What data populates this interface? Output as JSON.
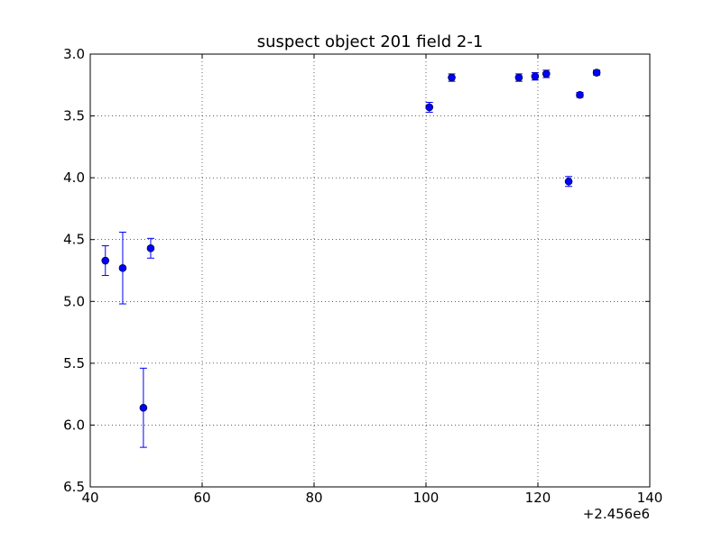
{
  "chart_data": {
    "type": "scatter",
    "title": "suspect object 201 field 2-1",
    "xlabel": "",
    "ylabel": "",
    "xlim": [
      40,
      140
    ],
    "ylim": [
      6.5,
      3.0
    ],
    "y_inverted": true,
    "x_offset_label": "+2.456e6",
    "x_ticks": [
      40,
      60,
      80,
      100,
      120,
      140
    ],
    "x_tick_labels": [
      "40",
      "60",
      "80",
      "100",
      "120",
      "140"
    ],
    "y_ticks": [
      3.0,
      3.5,
      4.0,
      4.5,
      5.0,
      5.5,
      6.0,
      6.5
    ],
    "y_tick_labels": [
      "3.0",
      "3.5",
      "4.0",
      "4.5",
      "5.0",
      "5.5",
      "6.0",
      "6.5"
    ],
    "grid": true,
    "marker_color": "#0000ff",
    "series": [
      {
        "points": [
          {
            "x": 42.7,
            "y": 4.67,
            "err": 0.12
          },
          {
            "x": 45.8,
            "y": 4.73,
            "err": 0.29
          },
          {
            "x": 49.5,
            "y": 5.86,
            "err": 0.32
          },
          {
            "x": 50.8,
            "y": 4.57,
            "err": 0.08
          },
          {
            "x": 100.6,
            "y": 3.43,
            "err": 0.04
          },
          {
            "x": 104.6,
            "y": 3.19,
            "err": 0.03
          },
          {
            "x": 116.6,
            "y": 3.19,
            "err": 0.03
          },
          {
            "x": 119.5,
            "y": 3.18,
            "err": 0.03
          },
          {
            "x": 121.5,
            "y": 3.16,
            "err": 0.03
          },
          {
            "x": 125.5,
            "y": 4.03,
            "err": 0.04
          },
          {
            "x": 127.5,
            "y": 3.33,
            "err": 0.02
          },
          {
            "x": 130.5,
            "y": 3.15,
            "err": 0.02
          }
        ]
      }
    ]
  }
}
